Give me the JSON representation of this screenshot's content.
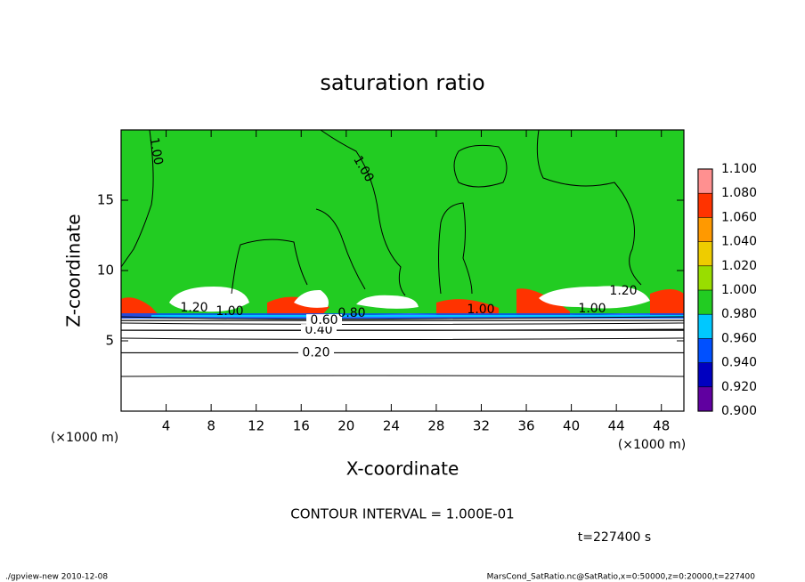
{
  "chart_data": {
    "type": "contour",
    "title": "saturation ratio",
    "xlabel": "X-coordinate",
    "ylabel": "Z-coordinate",
    "x_unit": "(×1000 m)",
    "y_unit": "(×1000 m)",
    "xlim": [
      0,
      50
    ],
    "ylim": [
      0,
      20
    ],
    "xticks": [
      4,
      8,
      12,
      16,
      20,
      24,
      28,
      32,
      36,
      40,
      44,
      48
    ],
    "yticks": [
      5,
      10,
      15
    ],
    "colorbar": {
      "levels": [
        {
          "value": 0.9,
          "label": "0.900"
        },
        {
          "value": 0.92,
          "label": "0.920"
        },
        {
          "value": 0.94,
          "label": "0.940"
        },
        {
          "value": 0.96,
          "label": "0.960"
        },
        {
          "value": 0.98,
          "label": "0.980"
        },
        {
          "value": 1.0,
          "label": "1.000"
        },
        {
          "value": 1.02,
          "label": "1.020"
        },
        {
          "value": 1.04,
          "label": "1.040"
        },
        {
          "value": 1.06,
          "label": "1.060"
        },
        {
          "value": 1.08,
          "label": "1.080"
        },
        {
          "value": 1.1,
          "label": "1.100"
        }
      ],
      "colors": [
        "#6000a0",
        "#0000c0",
        "#0050ff",
        "#00c8ff",
        "#22cc22",
        "#99dd00",
        "#eecc00",
        "#ff9900",
        "#ff3300",
        "#ff9090"
      ]
    },
    "contours": [
      {
        "level": {
          "value": 0.2,
          "label": "0.20"
        },
        "z": 4.15
      },
      {
        "level": {
          "value": 0.4,
          "label": "0.40"
        },
        "z": 5.75
      },
      {
        "level": {
          "value": 0.6,
          "label": "0.60"
        },
        "z": 6.45
      }
    ],
    "annotations": [
      "1.00",
      "1.00",
      "1.20",
      "1.00",
      "1.20",
      "1.00",
      "1.00",
      "0.80"
    ],
    "contour_interval": "CONTOUR INTERVAL = 1.000E-01",
    "time_label": "t=227400 s",
    "footer_left": "./gpview-new  2010-12-08",
    "footer_right": "MarsCond_SatRatio.nc@SatRatio,x=0:50000,z=0:20000,t=227400"
  }
}
